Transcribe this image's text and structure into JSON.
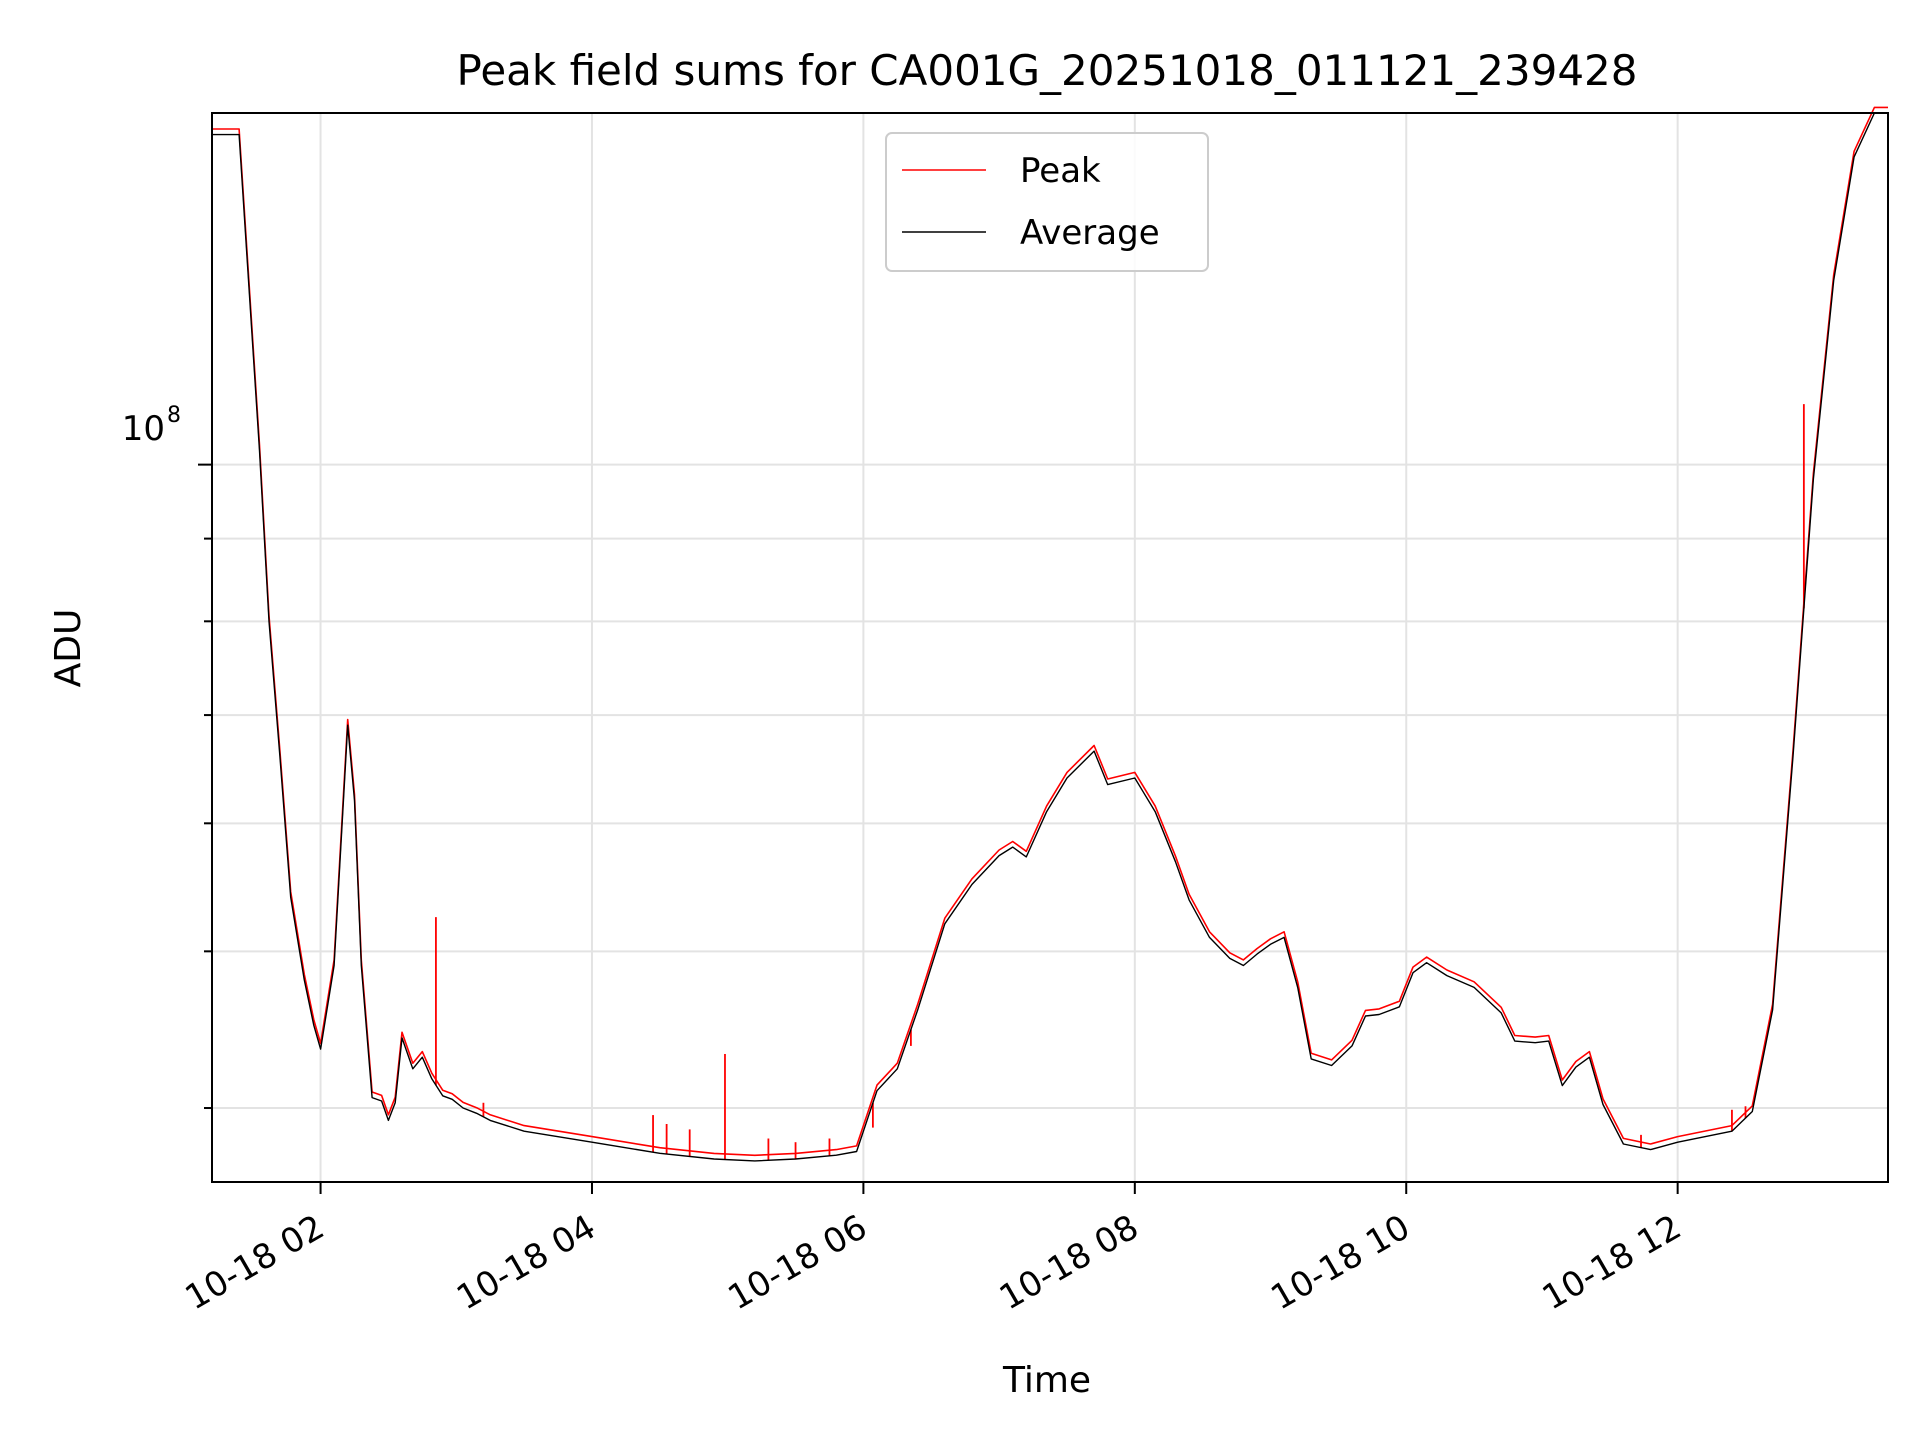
{
  "chart_data": {
    "type": "line",
    "title": "Peak field sums for CA001G_20251018_011121_239428",
    "xlabel": "Time",
    "ylabel": "ADU",
    "yscale": "log",
    "ytick_label": {
      "base": "10",
      "exp": "8",
      "value": 100000000
    },
    "xlim_hours": [
      1.2,
      13.55
    ],
    "ylim": [
      36000000,
      165000000
    ],
    "x_ticks": [
      {
        "label": "10-18 02",
        "hour": 2
      },
      {
        "label": "10-18 04",
        "hour": 4
      },
      {
        "label": "10-18 06",
        "hour": 6
      },
      {
        "label": "10-18 08",
        "hour": 8
      },
      {
        "label": "10-18 10",
        "hour": 10
      },
      {
        "label": "10-18 12",
        "hour": 12
      }
    ],
    "grid": true,
    "legend_position": "top-center",
    "series": [
      {
        "name": "Average",
        "color": "#000000",
        "x": [
          1.2,
          1.3,
          1.4,
          1.55,
          1.62,
          1.7,
          1.78,
          1.88,
          1.95,
          2.0,
          2.1,
          2.2,
          2.25,
          2.3,
          2.38,
          2.45,
          2.5,
          2.55,
          2.6,
          2.68,
          2.75,
          2.82,
          2.9,
          2.97,
          3.05,
          3.15,
          3.25,
          3.5,
          4.0,
          4.5,
          4.9,
          5.2,
          5.5,
          5.8,
          5.95,
          6.1,
          6.25,
          6.4,
          6.6,
          6.8,
          7.0,
          7.1,
          7.2,
          7.35,
          7.5,
          7.7,
          7.8,
          8.0,
          8.15,
          8.3,
          8.4,
          8.55,
          8.7,
          8.8,
          8.9,
          9.0,
          9.1,
          9.2,
          9.3,
          9.45,
          9.6,
          9.7,
          9.8,
          9.95,
          10.05,
          10.15,
          10.3,
          10.5,
          10.7,
          10.8,
          10.95,
          11.05,
          11.15,
          11.25,
          11.35,
          11.45,
          11.6,
          11.8,
          12.0,
          12.2,
          12.4,
          12.55,
          12.7,
          12.85,
          13.0,
          13.15,
          13.3,
          13.45,
          13.55
        ],
        "y": [
          160000000,
          160000000,
          160000000,
          102000000,
          80000000,
          66000000,
          54000000,
          48000000,
          45000000,
          43500000,
          49000000,
          69000000,
          62000000,
          49000000,
          40600000,
          40400000,
          39300000,
          40300000,
          44200000,
          42300000,
          43000000,
          41700000,
          40700000,
          40500000,
          40000000,
          39700000,
          39300000,
          38700000,
          38100000,
          37500000,
          37200000,
          37100000,
          37200000,
          37400000,
          37600000,
          41000000,
          42300000,
          46000000,
          52000000,
          55000000,
          57300000,
          58000000,
          57200000,
          61000000,
          64000000,
          66500000,
          63400000,
          64000000,
          61000000,
          56800000,
          53800000,
          51000000,
          49500000,
          49000000,
          49800000,
          50500000,
          51000000,
          47500000,
          42900000,
          42500000,
          43700000,
          45600000,
          45700000,
          46200000,
          48500000,
          49200000,
          48300000,
          47500000,
          45800000,
          44000000,
          43900000,
          44000000,
          41300000,
          42400000,
          43000000,
          40200000,
          38000000,
          37700000,
          38100000,
          38400000,
          38700000,
          39800000,
          46000000,
          66000000,
          98000000,
          130000000,
          155000000,
          165000000,
          165000000
        ]
      },
      {
        "name": "Peak",
        "color": "#ff0000",
        "spikes": [
          {
            "hour": 2.85,
            "value": 52500000
          },
          {
            "hour": 3.2,
            "value": 40300000
          },
          {
            "hour": 4.45,
            "value": 39600000
          },
          {
            "hour": 4.55,
            "value": 39100000
          },
          {
            "hour": 4.72,
            "value": 38800000
          },
          {
            "hour": 4.98,
            "value": 43200000
          },
          {
            "hour": 5.3,
            "value": 38300000
          },
          {
            "hour": 5.5,
            "value": 38100000
          },
          {
            "hour": 5.75,
            "value": 38300000
          },
          {
            "hour": 6.07,
            "value": 38900000
          },
          {
            "hour": 6.35,
            "value": 43700000
          },
          {
            "hour": 11.73,
            "value": 38500000
          },
          {
            "hour": 12.4,
            "value": 39900000
          },
          {
            "hour": 12.5,
            "value": 40100000
          },
          {
            "hour": 12.93,
            "value": 109000000
          }
        ]
      }
    ]
  }
}
